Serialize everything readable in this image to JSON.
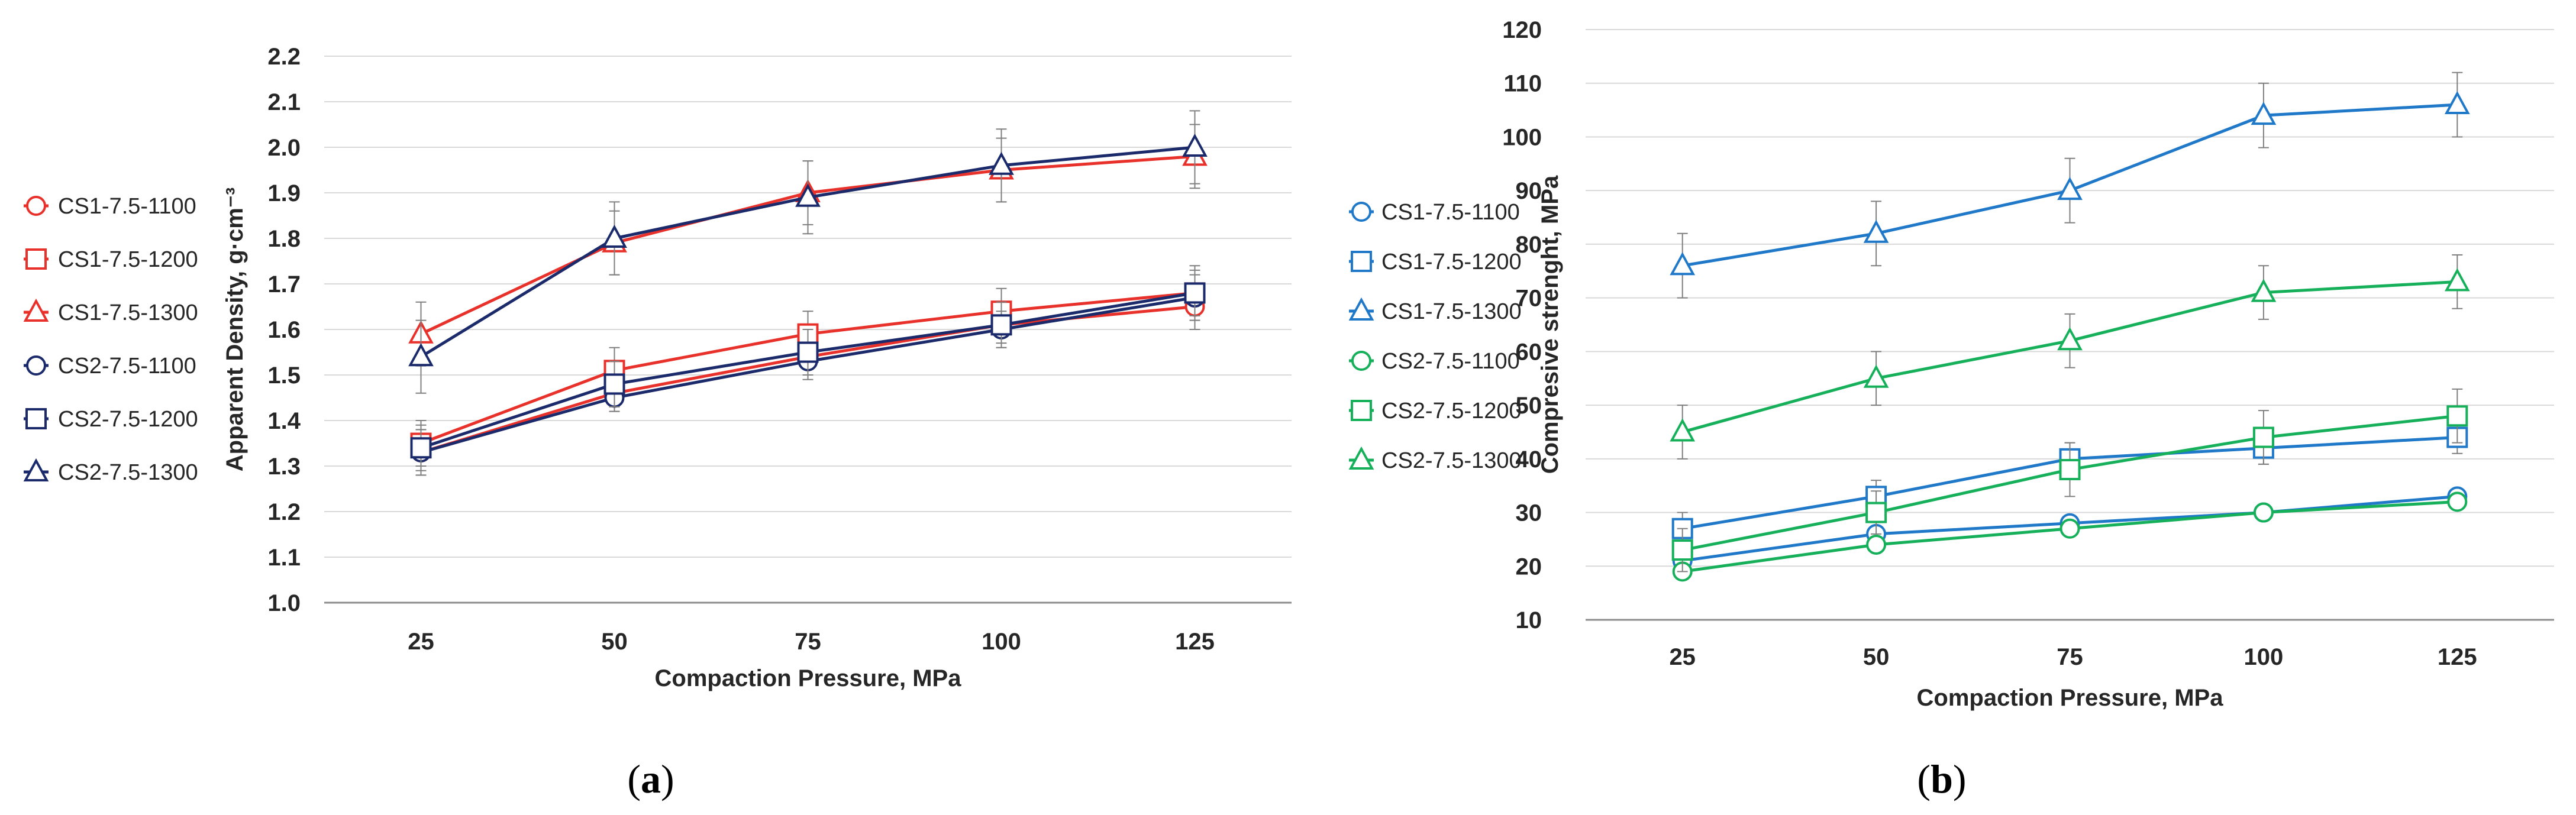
{
  "chart_data": [
    {
      "type": "line",
      "panel_label": "a",
      "xlabel": "Compaction Pressure, MPa",
      "ylabel": "Apparent Density, g·cm⁻³",
      "x": [
        25,
        50,
        75,
        100,
        125
      ],
      "x_tick_labels": [
        "25",
        "50",
        "75",
        "100",
        "125"
      ],
      "ylim": [
        1.0,
        2.2
      ],
      "y_tick_labels": [
        "1.0",
        "1.1",
        "1.2",
        "1.3",
        "1.4",
        "1.5",
        "1.6",
        "1.7",
        "1.8",
        "1.9",
        "2.0",
        "2.1",
        "2.2"
      ],
      "grid": "horizontal",
      "legend_position": "left",
      "series": [
        {
          "name": "CS1-7.5-1100",
          "color": "#e8312a",
          "marker": "circle",
          "values": [
            1.33,
            1.46,
            1.54,
            1.61,
            1.65
          ],
          "errors": [
            0.05,
            0.04,
            0.04,
            0.04,
            0.05
          ]
        },
        {
          "name": "CS1-7.5-1200",
          "color": "#e8312a",
          "marker": "square",
          "values": [
            1.35,
            1.51,
            1.59,
            1.64,
            1.68
          ],
          "errors": [
            0.05,
            0.05,
            0.05,
            0.05,
            0.05
          ]
        },
        {
          "name": "CS1-7.5-1300",
          "color": "#e8312a",
          "marker": "triangle",
          "values": [
            1.59,
            1.79,
            1.9,
            1.95,
            1.98
          ],
          "errors": [
            0.07,
            0.07,
            0.07,
            0.07,
            0.07
          ]
        },
        {
          "name": "CS2-7.5-1100",
          "color": "#1b2a6b",
          "marker": "circle",
          "values": [
            1.33,
            1.45,
            1.53,
            1.6,
            1.67
          ],
          "errors": [
            0.05,
            0.03,
            0.04,
            0.04,
            0.05
          ]
        },
        {
          "name": "CS2-7.5-1200",
          "color": "#1b2a6b",
          "marker": "square",
          "values": [
            1.34,
            1.48,
            1.55,
            1.61,
            1.68
          ],
          "errors": [
            0.05,
            0.05,
            0.05,
            0.05,
            0.06
          ]
        },
        {
          "name": "CS2-7.5-1300",
          "color": "#1b2a6b",
          "marker": "triangle",
          "values": [
            1.54,
            1.8,
            1.89,
            1.96,
            2.0
          ],
          "errors": [
            0.08,
            0.08,
            0.08,
            0.08,
            0.08
          ]
        }
      ]
    },
    {
      "type": "line",
      "panel_label": "b",
      "xlabel": "Compaction Pressure, MPa",
      "ylabel": "Compresive strenght, MPa",
      "x": [
        25,
        50,
        75,
        100,
        125
      ],
      "x_tick_labels": [
        "25",
        "50",
        "75",
        "100",
        "125"
      ],
      "ylim": [
        10,
        120
      ],
      "y_tick_labels": [
        "10",
        "20",
        "30",
        "40",
        "50",
        "60",
        "70",
        "80",
        "90",
        "100",
        "110",
        "120"
      ],
      "grid": "horizontal",
      "legend_position": "left",
      "series": [
        {
          "name": "CS1-7.5-1100",
          "color": "#1f78c8",
          "marker": "circle",
          "values": [
            21,
            26,
            28,
            30,
            33
          ],
          "errors": [
            1,
            1,
            1,
            1,
            1
          ]
        },
        {
          "name": "CS1-7.5-1200",
          "color": "#1f78c8",
          "marker": "square",
          "values": [
            27,
            33,
            40,
            42,
            44
          ],
          "errors": [
            3,
            3,
            3,
            3,
            3
          ]
        },
        {
          "name": "CS1-7.5-1300",
          "color": "#1f78c8",
          "marker": "triangle",
          "values": [
            76,
            82,
            90,
            104,
            106
          ],
          "errors": [
            6,
            6,
            6,
            6,
            6
          ]
        },
        {
          "name": "CS2-7.5-1100",
          "color": "#16b05a",
          "marker": "circle",
          "values": [
            19,
            24,
            27,
            30,
            32
          ],
          "errors": [
            1,
            1,
            1,
            1,
            1
          ]
        },
        {
          "name": "CS2-7.5-1200",
          "color": "#16b05a",
          "marker": "square",
          "values": [
            23,
            30,
            38,
            44,
            48
          ],
          "errors": [
            4,
            4,
            5,
            5,
            5
          ]
        },
        {
          "name": "CS2-7.5-1300",
          "color": "#16b05a",
          "marker": "triangle",
          "values": [
            45,
            55,
            62,
            71,
            73
          ],
          "errors": [
            5,
            5,
            5,
            5,
            5
          ]
        }
      ]
    }
  ]
}
